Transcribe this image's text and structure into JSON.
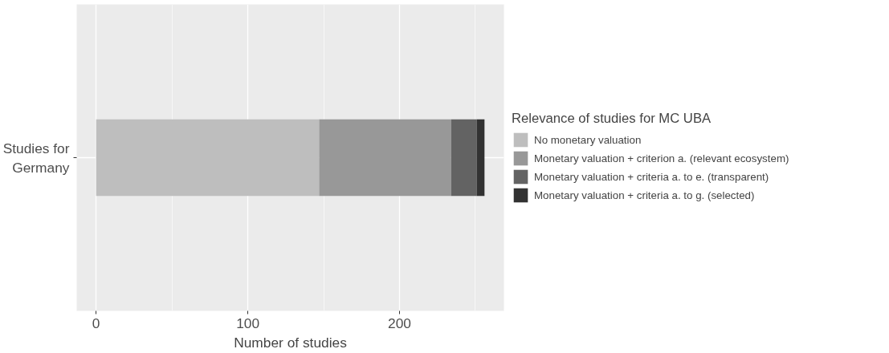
{
  "chart_data": {
    "type": "bar",
    "orientation": "horizontal",
    "stacked": true,
    "categories": [
      "Studies for Germany"
    ],
    "xlabel": "Number of studies",
    "legend_title": "Relevance of studies for MC UBA",
    "legend": "right",
    "grid": true,
    "xlim": [
      -12.8,
      268.8
    ],
    "xticks": [
      0,
      {
        "value": 50,
        "label": null
      },
      100,
      {
        "value": 150,
        "label": null
      },
      200,
      {
        "value": 250,
        "label": null
      }
    ],
    "series": [
      {
        "name": "No monetary valuation",
        "color": "#bebebe",
        "values": [
          147
        ]
      },
      {
        "name": "Monetary valuation + criterion a. (relevant ecosystem)",
        "color": "#989898",
        "values": [
          87
        ]
      },
      {
        "name": "Monetary valuation + criteria a. to e. (transparent)",
        "color": "#636363",
        "values": [
          17
        ]
      },
      {
        "name": "Monetary valuation + criteria a. to g. (selected)",
        "color": "#323232",
        "values": [
          5
        ]
      }
    ]
  }
}
